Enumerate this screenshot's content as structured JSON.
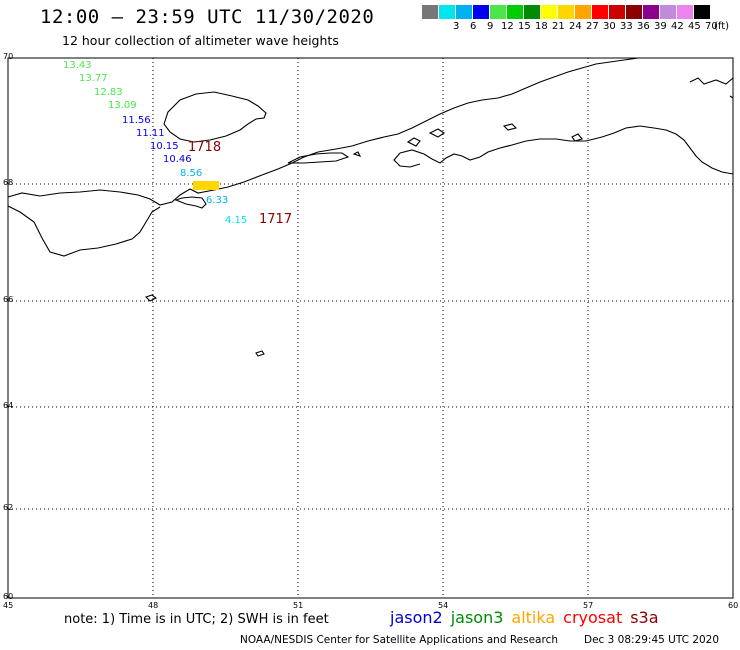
{
  "header": {
    "title": "12:00 – 23:59 UTC 11/30/2020",
    "subtitle": "12 hour collection of altimeter wave heights"
  },
  "legend": {
    "unit": "(ft)",
    "bins": [
      {
        "label": "",
        "color": "#777777"
      },
      {
        "label": "3",
        "color": "#00e5ee"
      },
      {
        "label": "6",
        "color": "#00b2ee"
      },
      {
        "label": "9",
        "color": "#0000ee"
      },
      {
        "label": "12",
        "color": "#4ee44e"
      },
      {
        "label": "15",
        "color": "#00cd00"
      },
      {
        "label": "18",
        "color": "#008b00"
      },
      {
        "label": "21",
        "color": "#ffff00"
      },
      {
        "label": "24",
        "color": "#ffd700"
      },
      {
        "label": "27",
        "color": "#ffa500"
      },
      {
        "label": "30",
        "color": "#ff0000"
      },
      {
        "label": "33",
        "color": "#cd0000"
      },
      {
        "label": "36",
        "color": "#8b0000"
      },
      {
        "label": "39",
        "color": "#8b008b"
      },
      {
        "label": "42",
        "color": "#c08bd8"
      },
      {
        "label": "45",
        "color": "#ee82ee"
      },
      {
        "label": "70",
        "color": "#000000"
      }
    ]
  },
  "axes": {
    "lat_ticks": [
      "70",
      "68",
      "66",
      "64",
      "62",
      "60"
    ],
    "lon_ticks": [
      "45",
      "48",
      "51",
      "54",
      "57",
      "60"
    ],
    "lat_range": [
      60,
      70
    ],
    "lon_range": [
      45,
      60
    ]
  },
  "observations": [
    {
      "value": "13.43",
      "color": "#4ee44e"
    },
    {
      "value": "13.77",
      "color": "#4ee44e"
    },
    {
      "value": "12.83",
      "color": "#4ee44e"
    },
    {
      "value": "13.09",
      "color": "#4ee44e"
    },
    {
      "value": "11.56",
      "color": "#0000ee"
    },
    {
      "value": "11.11",
      "color": "#0000ee"
    },
    {
      "value": "10.15",
      "color": "#0000ee"
    },
    {
      "value": "10.46",
      "color": "#0000ee"
    },
    {
      "value": "8.56",
      "color": "#00b2ee"
    },
    {
      "value": "6.33",
      "color": "#00b2ee"
    },
    {
      "value": "4.15",
      "color": "#00e5ee"
    },
    {
      "value": "",
      "color": "#ffd700"
    }
  ],
  "passes": [
    {
      "time": "1718",
      "color": "#8b0000"
    },
    {
      "time": "1717",
      "color": "#8b0000"
    }
  ],
  "footer": {
    "note": "note: 1) Time is in UTC; 2) SWH is in feet",
    "satellites": [
      {
        "name": "jason2",
        "color": "#0000cc"
      },
      {
        "name": "jason3",
        "color": "#008b00"
      },
      {
        "name": "altika",
        "color": "#ffa500"
      },
      {
        "name": "cryosat",
        "color": "#ff0000"
      },
      {
        "name": "s3a",
        "color": "#8b0000"
      }
    ],
    "credit": "NOAA/NESDIS Center for Satellite Applications and Research",
    "timestamp": "Dec  3 08:29:45 UTC 2020"
  }
}
